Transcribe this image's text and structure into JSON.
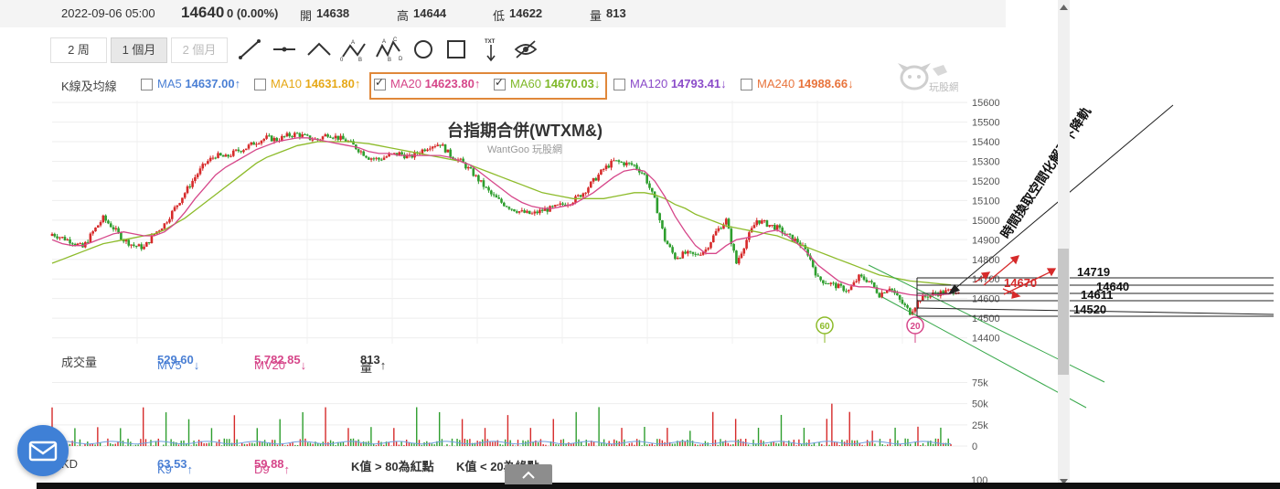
{
  "infobar": {
    "datetime": "2022-09-06 05:00",
    "price": "14640",
    "change": "0 (0.00%)",
    "open_label": "開",
    "open": "14638",
    "high_label": "高",
    "high": "14644",
    "low_label": "低",
    "low": "14622",
    "vol_label": "量",
    "vol": "813"
  },
  "toolbar": {
    "ranges": [
      {
        "label": "2 周",
        "state": "normal"
      },
      {
        "label": "1 個月",
        "state": "active"
      },
      {
        "label": "2 個月",
        "state": "disabled"
      }
    ],
    "tools": [
      "line-tool-icon",
      "horizontal-line-icon",
      "angle-tool-icon",
      "abc-pattern-icon",
      "abcd-pattern-icon",
      "circle-tool-icon",
      "rectangle-tool-icon",
      "text-arrow-icon",
      "hide-eye-icon"
    ],
    "abc_letters": [
      "A",
      "B",
      "C",
      "D",
      "0"
    ],
    "text_tool_label": "TXT"
  },
  "ma_legend": {
    "title": "K線及均線",
    "items": [
      {
        "name": "MA5",
        "value": "14637.00",
        "arrow": "↑",
        "checked": false,
        "color": "#4a7fd4"
      },
      {
        "name": "MA10",
        "value": "14631.80",
        "arrow": "↑",
        "checked": false,
        "color": "#e6a817"
      },
      {
        "name": "MA20",
        "value": "14623.80",
        "arrow": "↑",
        "checked": true,
        "color": "#d6478a"
      },
      {
        "name": "MA60",
        "value": "14670.03",
        "arrow": "↓",
        "checked": true,
        "color": "#7fb829"
      },
      {
        "name": "MA120",
        "value": "14793.41",
        "arrow": "↓",
        "checked": false,
        "color": "#8b4cc9"
      },
      {
        "name": "MA240",
        "value": "14988.66",
        "arrow": "↓",
        "checked": false,
        "color": "#e8743c"
      }
    ]
  },
  "watermark": {
    "brand": "玩股網"
  },
  "chart_data": {
    "type": "candlestick",
    "title": "台指期合併(WTXM&)",
    "subtitle": "WantGoo 玩股網",
    "yaxis_ticks": [
      15600,
      15500,
      15400,
      15300,
      15200,
      15100,
      15000,
      14900,
      14800,
      14700,
      14600,
      14500,
      14400
    ],
    "ylim": [
      14370,
      15610
    ],
    "close_series": [
      14930,
      14910,
      14890,
      14860,
      14940,
      15010,
      14960,
      14900,
      14870,
      14860,
      14930,
      14980,
      15060,
      15140,
      15220,
      15290,
      15330,
      15320,
      15350,
      15370,
      15400,
      15420,
      15410,
      15430,
      15440,
      15420,
      15410,
      15440,
      15420,
      15400,
      15360,
      15320,
      15310,
      15330,
      15340,
      15320,
      15350,
      15380,
      15390,
      15330,
      15300,
      15250,
      15190,
      15130,
      15090,
      15060,
      15040,
      15030,
      15050,
      15060,
      15080,
      15100,
      15140,
      15200,
      15260,
      15300,
      15290,
      15280,
      15230,
      15100,
      14900,
      14810,
      14830,
      14820,
      14850,
      14940,
      15000,
      14780,
      14900,
      15000,
      14980,
      14960,
      14920,
      14890,
      14830,
      14700,
      14680,
      14660,
      14640,
      14710,
      14690,
      14620,
      14660,
      14590,
      14530,
      14600,
      14620,
      14630,
      14640
    ],
    "ma20_series": [
      14900,
      14880,
      14870,
      14870,
      14890,
      14910,
      14930,
      14940,
      14930,
      14920,
      14920,
      14940,
      14980,
      15040,
      15110,
      15170,
      15230,
      15270,
      15300,
      15330,
      15360,
      15380,
      15400,
      15410,
      15420,
      15420,
      15410,
      15400,
      15390,
      15380,
      15370,
      15350,
      15340,
      15340,
      15330,
      15330,
      15330,
      15330,
      15330,
      15320,
      15300,
      15280,
      15240,
      15200,
      15160,
      15120,
      15090,
      15070,
      15060,
      15060,
      15070,
      15080,
      15110,
      15140,
      15180,
      15220,
      15250,
      15260,
      15250,
      15200,
      15120,
      15020,
      14940,
      14870,
      14830,
      14830,
      14870,
      14900,
      14910,
      14920,
      14940,
      14950,
      14920,
      14880,
      14830,
      14770,
      14730,
      14690,
      14670,
      14660,
      14660,
      14650,
      14640,
      14630,
      14620,
      14615,
      14618,
      14620,
      14624
    ],
    "ma60_series": [
      14780,
      14800,
      14820,
      14840,
      14860,
      14880,
      14890,
      14900,
      14910,
      14920,
      14930,
      14950,
      14980,
      15010,
      15050,
      15090,
      15130,
      15170,
      15210,
      15250,
      15290,
      15320,
      15340,
      15360,
      15380,
      15390,
      15400,
      15400,
      15400,
      15400,
      15395,
      15390,
      15380,
      15370,
      15360,
      15350,
      15340,
      15330,
      15320,
      15310,
      15300,
      15280,
      15260,
      15240,
      15220,
      15200,
      15180,
      15160,
      15140,
      15130,
      15120,
      15110,
      15110,
      15110,
      15110,
      15120,
      15130,
      15140,
      15140,
      15130,
      15110,
      15080,
      15060,
      15030,
      15010,
      14990,
      14970,
      14960,
      14950,
      14940,
      14930,
      14920,
      14900,
      14880,
      14860,
      14840,
      14820,
      14800,
      14780,
      14760,
      14740,
      14720,
      14710,
      14700,
      14690,
      14685,
      14680,
      14675,
      14670
    ],
    "annotations": {
      "ma_tags": [
        {
          "label": "60"
        },
        {
          "label": "20"
        }
      ],
      "price_levels": [
        "14719",
        "14640",
        "14611",
        "14520"
      ],
      "current_ma60_label": "14670",
      "vertical_text": "時間換取空間化解了下降軌"
    },
    "volume": {
      "title": "成交量",
      "mv5_label": "MV5",
      "mv5": "529.60",
      "mv5_arrow": "↓",
      "mv20_label": "MV20",
      "mv20": "5,782.85",
      "mv20_arrow": "↓",
      "vol_label": "量",
      "vol": "813",
      "vol_arrow": "↑",
      "yaxis_ticks": [
        "75k",
        "50k",
        "25k",
        "0"
      ]
    },
    "kd": {
      "k_label": "K9",
      "k": "63.53",
      "k_arrow": "↑",
      "d_label": "D9",
      "d": "59.88",
      "d_arrow": "↑",
      "rule1": "K值 > 80為紅點",
      "rule2": "K值 < 20為綠點",
      "ytick": "100"
    }
  },
  "colors": {
    "up": "#d62a2a",
    "down": "#2e9e2e",
    "ma20": "#d6478a",
    "ma60": "#8dbb2a",
    "highlight_box": "#e0883a",
    "chat_button": "#3f80d6"
  }
}
